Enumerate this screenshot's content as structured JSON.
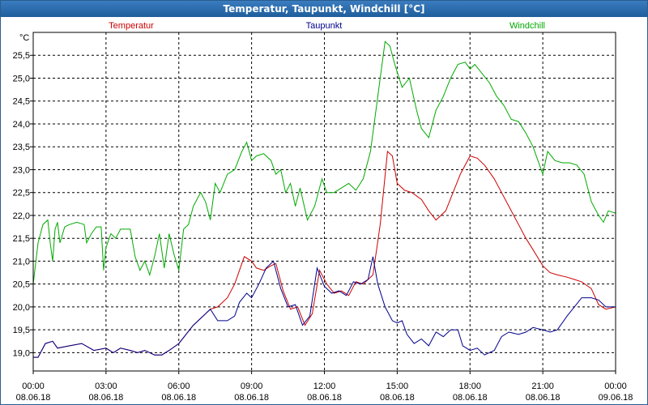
{
  "window": {
    "title": "Temperatur, Taupunkt, Windchill [°C]"
  },
  "chart_data": {
    "type": "line",
    "unit_label": "°C",
    "xlim_hours": [
      0,
      24
    ],
    "ylim": [
      18.6,
      26.0
    ],
    "grid": true,
    "legend_placement": "top",
    "yticks": [
      {
        "value": 19.0,
        "label": "19,0"
      },
      {
        "value": 19.5,
        "label": "19,5"
      },
      {
        "value": 20.0,
        "label": "20,0"
      },
      {
        "value": 20.5,
        "label": "20,5"
      },
      {
        "value": 21.0,
        "label": "21,0"
      },
      {
        "value": 21.5,
        "label": "21,5"
      },
      {
        "value": 22.0,
        "label": "22,0"
      },
      {
        "value": 22.5,
        "label": "22,5"
      },
      {
        "value": 23.0,
        "label": "23,0"
      },
      {
        "value": 23.5,
        "label": "23,5"
      },
      {
        "value": 24.0,
        "label": "24,0"
      },
      {
        "value": 24.5,
        "label": "24,5"
      },
      {
        "value": 25.0,
        "label": "25,0"
      },
      {
        "value": 25.5,
        "label": "25,5"
      }
    ],
    "xticks": [
      {
        "hour": 0,
        "time": "00:00",
        "date": "08.06.18"
      },
      {
        "hour": 3,
        "time": "03:00",
        "date": "08.06.18"
      },
      {
        "hour": 6,
        "time": "06:00",
        "date": "08.06.18"
      },
      {
        "hour": 9,
        "time": "09:00",
        "date": "08.06.18"
      },
      {
        "hour": 12,
        "time": "12:00",
        "date": "08.06.18"
      },
      {
        "hour": 15,
        "time": "15:00",
        "date": "08.06.18"
      },
      {
        "hour": 18,
        "time": "18:00",
        "date": "08.06.18"
      },
      {
        "hour": 21,
        "time": "21:00",
        "date": "08.06.18"
      },
      {
        "hour": 24,
        "time": "00:00",
        "date": "09.06.18"
      }
    ],
    "series": [
      {
        "name": "Temperatur",
        "color": "#cc0000",
        "points": [
          [
            0,
            18.9
          ],
          [
            0.2,
            18.9
          ],
          [
            0.5,
            19.2
          ],
          [
            0.8,
            19.25
          ],
          [
            1.0,
            19.1
          ],
          [
            1.5,
            19.15
          ],
          [
            2.0,
            19.2
          ],
          [
            2.5,
            19.05
          ],
          [
            3.0,
            19.1
          ],
          [
            3.3,
            19.0
          ],
          [
            3.6,
            19.1
          ],
          [
            4.0,
            19.05
          ],
          [
            4.3,
            19.0
          ],
          [
            4.6,
            19.05
          ],
          [
            5.0,
            18.95
          ],
          [
            5.3,
            18.95
          ],
          [
            5.6,
            19.05
          ],
          [
            6.0,
            19.2
          ],
          [
            6.3,
            19.4
          ],
          [
            6.6,
            19.6
          ],
          [
            7.0,
            19.8
          ],
          [
            7.3,
            19.95
          ],
          [
            7.6,
            20.0
          ],
          [
            8.0,
            20.2
          ],
          [
            8.3,
            20.5
          ],
          [
            8.7,
            21.1
          ],
          [
            9.0,
            21.0
          ],
          [
            9.2,
            20.85
          ],
          [
            9.5,
            20.8
          ],
          [
            9.8,
            20.9
          ],
          [
            10.0,
            20.95
          ],
          [
            10.3,
            20.35
          ],
          [
            10.6,
            19.95
          ],
          [
            10.9,
            20.0
          ],
          [
            11.2,
            19.6
          ],
          [
            11.5,
            19.85
          ],
          [
            11.8,
            20.8
          ],
          [
            12.1,
            20.5
          ],
          [
            12.4,
            20.3
          ],
          [
            12.7,
            20.35
          ],
          [
            13.0,
            20.25
          ],
          [
            13.3,
            20.55
          ],
          [
            13.6,
            20.5
          ],
          [
            14.0,
            20.7
          ],
          [
            14.3,
            21.8
          ],
          [
            14.6,
            23.4
          ],
          [
            14.8,
            23.3
          ],
          [
            15.0,
            22.7
          ],
          [
            15.3,
            22.55
          ],
          [
            15.6,
            22.5
          ],
          [
            16.0,
            22.35
          ],
          [
            16.3,
            22.1
          ],
          [
            16.6,
            21.9
          ],
          [
            17.0,
            22.1
          ],
          [
            17.3,
            22.5
          ],
          [
            17.6,
            22.9
          ],
          [
            18.0,
            23.3
          ],
          [
            18.3,
            23.25
          ],
          [
            18.6,
            23.1
          ],
          [
            19.0,
            22.8
          ],
          [
            19.3,
            22.5
          ],
          [
            19.6,
            22.2
          ],
          [
            20.0,
            21.8
          ],
          [
            20.3,
            21.5
          ],
          [
            20.6,
            21.25
          ],
          [
            21.0,
            20.9
          ],
          [
            21.3,
            20.75
          ],
          [
            21.6,
            20.7
          ],
          [
            22.0,
            20.65
          ],
          [
            22.3,
            20.6
          ],
          [
            22.6,
            20.55
          ],
          [
            23.0,
            20.4
          ],
          [
            23.3,
            20.05
          ],
          [
            23.6,
            19.95
          ],
          [
            24.0,
            20.0
          ]
        ]
      },
      {
        "name": "Taupunkt",
        "color": "#00008b",
        "points": [
          [
            0,
            18.9
          ],
          [
            0.2,
            18.9
          ],
          [
            0.5,
            19.2
          ],
          [
            0.8,
            19.25
          ],
          [
            1.0,
            19.1
          ],
          [
            1.5,
            19.15
          ],
          [
            2.0,
            19.2
          ],
          [
            2.5,
            19.05
          ],
          [
            3.0,
            19.1
          ],
          [
            3.3,
            19.0
          ],
          [
            3.6,
            19.1
          ],
          [
            4.0,
            19.05
          ],
          [
            4.3,
            19.0
          ],
          [
            4.6,
            19.05
          ],
          [
            5.0,
            18.95
          ],
          [
            5.3,
            18.95
          ],
          [
            5.6,
            19.05
          ],
          [
            6.0,
            19.2
          ],
          [
            6.3,
            19.4
          ],
          [
            6.6,
            19.6
          ],
          [
            7.0,
            19.8
          ],
          [
            7.3,
            19.95
          ],
          [
            7.6,
            19.7
          ],
          [
            8.0,
            19.7
          ],
          [
            8.3,
            19.8
          ],
          [
            8.5,
            20.1
          ],
          [
            8.8,
            20.3
          ],
          [
            9.0,
            20.2
          ],
          [
            9.3,
            20.5
          ],
          [
            9.6,
            20.85
          ],
          [
            9.9,
            21.0
          ],
          [
            10.2,
            20.4
          ],
          [
            10.5,
            20.0
          ],
          [
            10.8,
            20.05
          ],
          [
            11.1,
            19.6
          ],
          [
            11.4,
            19.8
          ],
          [
            11.7,
            20.85
          ],
          [
            12.0,
            20.45
          ],
          [
            12.3,
            20.3
          ],
          [
            12.6,
            20.35
          ],
          [
            12.9,
            20.25
          ],
          [
            13.2,
            20.55
          ],
          [
            13.5,
            20.5
          ],
          [
            13.8,
            20.6
          ],
          [
            14.0,
            21.1
          ],
          [
            14.2,
            20.5
          ],
          [
            14.5,
            20.0
          ],
          [
            14.8,
            19.7
          ],
          [
            15.0,
            19.65
          ],
          [
            15.2,
            19.7
          ],
          [
            15.4,
            19.4
          ],
          [
            15.7,
            19.2
          ],
          [
            16.0,
            19.3
          ],
          [
            16.3,
            19.15
          ],
          [
            16.6,
            19.45
          ],
          [
            16.9,
            19.35
          ],
          [
            17.2,
            19.5
          ],
          [
            17.5,
            19.5
          ],
          [
            17.7,
            19.15
          ],
          [
            18.0,
            19.05
          ],
          [
            18.3,
            19.1
          ],
          [
            18.6,
            18.95
          ],
          [
            19.0,
            19.05
          ],
          [
            19.3,
            19.35
          ],
          [
            19.6,
            19.45
          ],
          [
            20.0,
            19.4
          ],
          [
            20.3,
            19.45
          ],
          [
            20.6,
            19.55
          ],
          [
            21.0,
            19.5
          ],
          [
            21.3,
            19.45
          ],
          [
            21.6,
            19.5
          ],
          [
            22.0,
            19.8
          ],
          [
            22.3,
            20.0
          ],
          [
            22.6,
            20.2
          ],
          [
            23.0,
            20.2
          ],
          [
            23.3,
            20.15
          ],
          [
            23.6,
            20.0
          ],
          [
            24.0,
            20.0
          ]
        ]
      },
      {
        "name": "Windchill",
        "color": "#00aa00",
        "points": [
          [
            0,
            20.5
          ],
          [
            0.2,
            21.4
          ],
          [
            0.4,
            21.8
          ],
          [
            0.6,
            21.9
          ],
          [
            0.7,
            21.4
          ],
          [
            0.8,
            21.0
          ],
          [
            0.9,
            21.7
          ],
          [
            1.0,
            21.85
          ],
          [
            1.1,
            21.4
          ],
          [
            1.3,
            21.75
          ],
          [
            1.5,
            21.8
          ],
          [
            1.8,
            21.85
          ],
          [
            2.1,
            21.8
          ],
          [
            2.2,
            21.4
          ],
          [
            2.4,
            21.6
          ],
          [
            2.6,
            21.75
          ],
          [
            2.8,
            21.75
          ],
          [
            2.9,
            20.8
          ],
          [
            3.0,
            21.3
          ],
          [
            3.2,
            21.6
          ],
          [
            3.4,
            21.5
          ],
          [
            3.6,
            21.7
          ],
          [
            4.0,
            21.7
          ],
          [
            4.2,
            21.1
          ],
          [
            4.4,
            20.8
          ],
          [
            4.6,
            21.0
          ],
          [
            4.8,
            20.7
          ],
          [
            5.0,
            21.1
          ],
          [
            5.2,
            21.6
          ],
          [
            5.4,
            20.85
          ],
          [
            5.6,
            21.6
          ],
          [
            5.8,
            21.15
          ],
          [
            6.0,
            20.8
          ],
          [
            6.2,
            21.7
          ],
          [
            6.4,
            21.8
          ],
          [
            6.6,
            22.2
          ],
          [
            6.9,
            22.5
          ],
          [
            7.1,
            22.3
          ],
          [
            7.3,
            21.9
          ],
          [
            7.5,
            22.7
          ],
          [
            7.7,
            22.5
          ],
          [
            8.0,
            22.9
          ],
          [
            8.3,
            23.0
          ],
          [
            8.6,
            23.4
          ],
          [
            8.8,
            23.6
          ],
          [
            9.0,
            23.2
          ],
          [
            9.2,
            23.3
          ],
          [
            9.5,
            23.35
          ],
          [
            9.8,
            23.2
          ],
          [
            10.0,
            22.9
          ],
          [
            10.2,
            23.0
          ],
          [
            10.4,
            22.5
          ],
          [
            10.6,
            22.7
          ],
          [
            10.8,
            22.2
          ],
          [
            11.0,
            22.6
          ],
          [
            11.3,
            21.9
          ],
          [
            11.6,
            22.2
          ],
          [
            11.9,
            22.8
          ],
          [
            12.1,
            22.5
          ],
          [
            12.4,
            22.5
          ],
          [
            12.7,
            22.6
          ],
          [
            13.0,
            22.7
          ],
          [
            13.3,
            22.55
          ],
          [
            13.6,
            22.8
          ],
          [
            13.9,
            23.4
          ],
          [
            14.2,
            24.6
          ],
          [
            14.5,
            25.8
          ],
          [
            14.7,
            25.7
          ],
          [
            14.9,
            25.3
          ],
          [
            15.2,
            24.8
          ],
          [
            15.5,
            25.0
          ],
          [
            15.8,
            24.3
          ],
          [
            16.0,
            23.9
          ],
          [
            16.3,
            23.7
          ],
          [
            16.6,
            24.3
          ],
          [
            16.9,
            24.6
          ],
          [
            17.2,
            25.0
          ],
          [
            17.5,
            25.3
          ],
          [
            17.8,
            25.35
          ],
          [
            18.0,
            25.2
          ],
          [
            18.2,
            25.3
          ],
          [
            18.5,
            25.1
          ],
          [
            18.8,
            24.9
          ],
          [
            19.1,
            24.6
          ],
          [
            19.4,
            24.4
          ],
          [
            19.7,
            24.1
          ],
          [
            20.0,
            24.05
          ],
          [
            20.3,
            23.8
          ],
          [
            20.6,
            23.5
          ],
          [
            20.8,
            23.2
          ],
          [
            21.0,
            22.9
          ],
          [
            21.2,
            23.4
          ],
          [
            21.5,
            23.2
          ],
          [
            21.8,
            23.15
          ],
          [
            22.1,
            23.15
          ],
          [
            22.4,
            23.1
          ],
          [
            22.7,
            22.9
          ],
          [
            23.0,
            22.3
          ],
          [
            23.3,
            22.0
          ],
          [
            23.5,
            21.85
          ],
          [
            23.7,
            22.1
          ],
          [
            24.0,
            22.05
          ]
        ]
      }
    ]
  }
}
